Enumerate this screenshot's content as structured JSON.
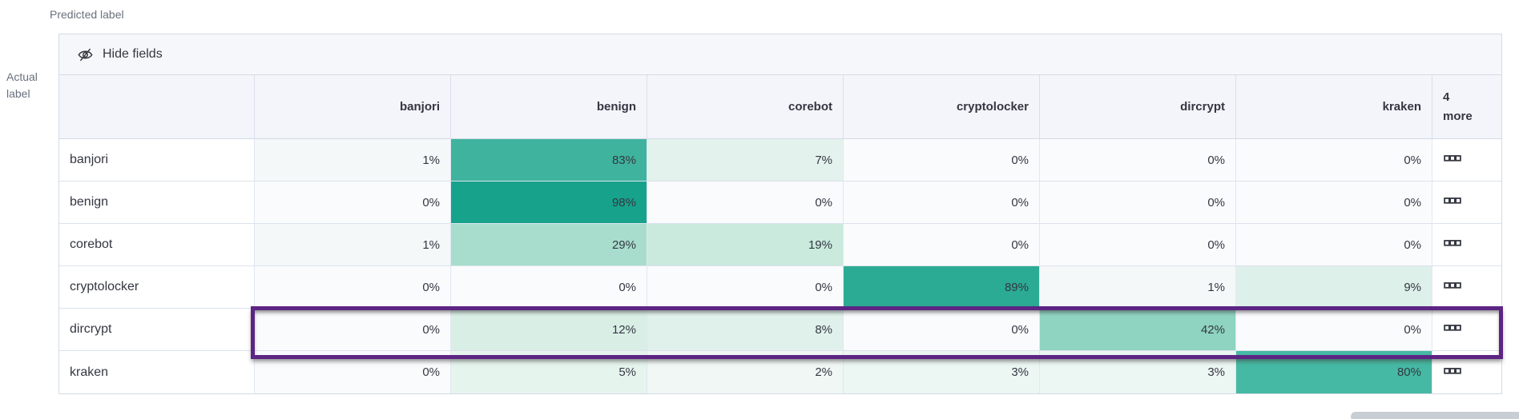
{
  "axes": {
    "predicted_label": "Predicted label",
    "actual_label": "Actual label"
  },
  "toolbar": {
    "hide_fields_label": "Hide fields",
    "icon": "eye-closed-icon"
  },
  "chart_data": {
    "type": "heatmap",
    "title": "Confusion matrix of actual vs predicted labels",
    "columns": [
      "banjori",
      "benign",
      "corebot",
      "cryptolocker",
      "dircrypt",
      "kraken"
    ],
    "extra_columns_header": "4 more",
    "more_actions_icon": "boxes-horizontal-icon",
    "rows": [
      {
        "label": "banjori",
        "cells": [
          {
            "v": "1%",
            "bg": "#f4f8f9"
          },
          {
            "v": "83%",
            "bg": "#3fb39e"
          },
          {
            "v": "7%",
            "bg": "#e3f2ec"
          },
          {
            "v": "0%",
            "bg": "#fafbfd"
          },
          {
            "v": "0%",
            "bg": "#fafbfd"
          },
          {
            "v": "0%",
            "bg": "#fafbfd"
          }
        ]
      },
      {
        "label": "benign",
        "cells": [
          {
            "v": "0%",
            "bg": "#fafbfd"
          },
          {
            "v": "98%",
            "bg": "#17a28c"
          },
          {
            "v": "0%",
            "bg": "#fafbfd"
          },
          {
            "v": "0%",
            "bg": "#fafbfd"
          },
          {
            "v": "0%",
            "bg": "#fafbfd"
          },
          {
            "v": "0%",
            "bg": "#fafbfd"
          }
        ]
      },
      {
        "label": "corebot",
        "cells": [
          {
            "v": "1%",
            "bg": "#f4f8f9"
          },
          {
            "v": "29%",
            "bg": "#a8ddcd"
          },
          {
            "v": "19%",
            "bg": "#c9eadd"
          },
          {
            "v": "0%",
            "bg": "#fafbfd"
          },
          {
            "v": "0%",
            "bg": "#fafbfd"
          },
          {
            "v": "0%",
            "bg": "#fafbfd"
          }
        ]
      },
      {
        "label": "cryptolocker",
        "cells": [
          {
            "v": "0%",
            "bg": "#fafbfd"
          },
          {
            "v": "0%",
            "bg": "#fafbfd"
          },
          {
            "v": "0%",
            "bg": "#fafbfd"
          },
          {
            "v": "89%",
            "bg": "#2cab94"
          },
          {
            "v": "1%",
            "bg": "#f4f8f9"
          },
          {
            "v": "9%",
            "bg": "#def0ea"
          }
        ]
      },
      {
        "label": "dircrypt",
        "cells": [
          {
            "v": "0%",
            "bg": "#fafbfd"
          },
          {
            "v": "12%",
            "bg": "#d9efe6"
          },
          {
            "v": "8%",
            "bg": "#e0f1eb"
          },
          {
            "v": "0%",
            "bg": "#fafbfd"
          },
          {
            "v": "42%",
            "bg": "#8ed4c1"
          },
          {
            "v": "0%",
            "bg": "#fafbfd"
          }
        ]
      },
      {
        "label": "kraken",
        "cells": [
          {
            "v": "0%",
            "bg": "#fafbfd"
          },
          {
            "v": "5%",
            "bg": "#e6f4ee"
          },
          {
            "v": "2%",
            "bg": "#f0f7f5"
          },
          {
            "v": "3%",
            "bg": "#ecf6f2"
          },
          {
            "v": "3%",
            "bg": "#ecf6f2"
          },
          {
            "v": "80%",
            "bg": "#46b9a4"
          }
        ]
      }
    ],
    "highlight": {
      "row": "dircrypt",
      "color": "#5c2483"
    },
    "legend_position": "none",
    "grid": true
  }
}
